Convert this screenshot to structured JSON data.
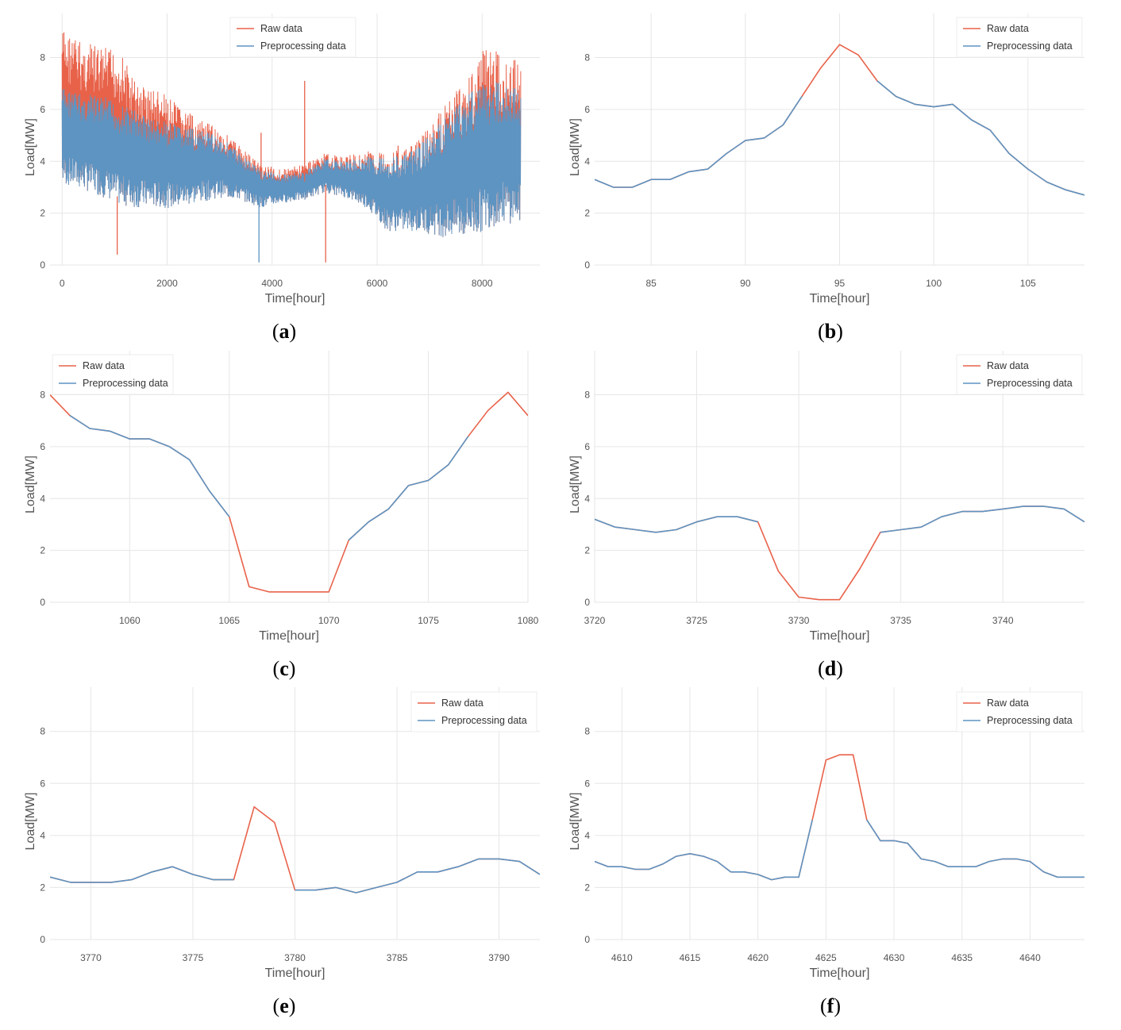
{
  "figure": {
    "colors": {
      "raw": "#e8624a",
      "preprocessing": "#5e94c2",
      "grid": "#e6e6e6",
      "text": "#555555"
    }
  },
  "chart_data": [
    {
      "id": "a",
      "type": "line",
      "caption": "a",
      "xlabel": "Time[hour]",
      "ylabel": "Load[MW]",
      "xlim": [
        -230,
        9100
      ],
      "ylim": [
        0,
        9.7
      ],
      "xticks": [
        0,
        2000,
        4000,
        6000,
        8000
      ],
      "yticks": [
        0,
        2,
        4,
        6,
        8
      ],
      "grid": true,
      "legend_position": "top-center",
      "dense_series": true,
      "note": "Hourly load for one year (~8760 points); envelope values approximate",
      "x": [
        0,
        400,
        800,
        1100,
        1400,
        1800,
        2200,
        2600,
        3000,
        3400,
        3800,
        4200,
        4600,
        5000,
        5400,
        5800,
        6200,
        6600,
        7000,
        7400,
        7800,
        8100,
        8400,
        8700
      ],
      "raw_upper": [
        9.2,
        8.6,
        8.4,
        8.3,
        7.1,
        6.8,
        6.2,
        5.6,
        5.3,
        4.6,
        3.9,
        3.7,
        3.9,
        4.3,
        4.2,
        4.4,
        4.4,
        4.5,
        5.3,
        6.6,
        7.6,
        8.7,
        8.0,
        8.0
      ],
      "prep_upper": [
        6.9,
        6.6,
        6.5,
        6.2,
        6.0,
        5.6,
        5.4,
        5.2,
        5.0,
        4.3,
        3.7,
        3.5,
        3.6,
        4.1,
        4.0,
        4.2,
        4.2,
        4.3,
        5.0,
        6.0,
        6.9,
        7.1,
        7.1,
        6.8
      ],
      "lower": [
        3.1,
        2.9,
        2.6,
        2.3,
        2.2,
        2.2,
        2.2,
        2.4,
        2.6,
        2.5,
        2.2,
        2.4,
        2.5,
        2.8,
        2.6,
        2.2,
        1.3,
        1.3,
        1.2,
        1.0,
        1.0,
        1.4,
        1.6,
        1.6
      ],
      "spikes": [
        {
          "x": 1050,
          "y": 0.4,
          "series": "Raw data"
        },
        {
          "x": 3750,
          "y": 0.1,
          "series": "Preprocessing data"
        },
        {
          "x": 3790,
          "y": 5.1,
          "series": "Raw data"
        },
        {
          "x": 4620,
          "y": 7.1,
          "series": "Raw data"
        },
        {
          "x": 5020,
          "y": 0.1,
          "series": "Raw data"
        },
        {
          "x": 6400,
          "y": 4.6,
          "series": "Raw data"
        }
      ],
      "series": [
        {
          "name": "Raw data",
          "color": "#e8624a"
        },
        {
          "name": "Preprocessing data",
          "color": "#5e94c2"
        }
      ]
    },
    {
      "id": "b",
      "type": "line",
      "caption": "b",
      "xlabel": "Time[hour]",
      "ylabel": "Load[MW]",
      "xlim": [
        82,
        108
      ],
      "ylim": [
        0,
        9.7
      ],
      "xticks": [
        85,
        90,
        95,
        100,
        105
      ],
      "yticks": [
        0,
        2,
        4,
        6,
        8
      ],
      "grid": true,
      "legend_position": "top-right",
      "series": [
        {
          "name": "Raw data",
          "color": "#e8624a",
          "x": [
            82,
            83,
            84,
            85,
            86,
            87,
            88,
            89,
            90,
            91,
            92,
            93,
            94,
            95,
            96,
            97,
            98,
            99,
            100,
            101,
            102,
            103,
            104,
            105,
            106,
            107,
            108
          ],
          "y": [
            3.3,
            3.0,
            3.0,
            3.3,
            3.3,
            3.6,
            3.7,
            4.3,
            4.8,
            4.9,
            5.4,
            6.5,
            7.6,
            8.5,
            8.1,
            7.1,
            6.5,
            6.2,
            6.1,
            6.2,
            5.6,
            5.2,
            4.3,
            3.7,
            3.2,
            2.9,
            2.7
          ]
        },
        {
          "name": "Preprocessing data",
          "color": "#5e94c2",
          "x": [
            82,
            83,
            84,
            85,
            86,
            87,
            88,
            89,
            90,
            91,
            92,
            93,
            null,
            97,
            98,
            99,
            100,
            101,
            102,
            103,
            104,
            105,
            106,
            107,
            108
          ],
          "y": [
            3.3,
            3.0,
            3.0,
            3.3,
            3.3,
            3.6,
            3.7,
            4.3,
            4.8,
            4.9,
            5.4,
            6.5,
            null,
            7.1,
            6.5,
            6.2,
            6.1,
            6.2,
            5.6,
            5.2,
            4.3,
            3.7,
            3.2,
            2.9,
            2.7
          ]
        }
      ]
    },
    {
      "id": "c",
      "type": "line",
      "caption": "c",
      "xlabel": "Time[hour]",
      "ylabel": "Load[MW]",
      "xlim": [
        1056,
        1080
      ],
      "ylim": [
        0,
        9.7
      ],
      "xticks": [
        1060,
        1065,
        1070,
        1075,
        1080
      ],
      "yticks": [
        0,
        2,
        4,
        6,
        8
      ],
      "grid": true,
      "legend_position": "top-left",
      "series": [
        {
          "name": "Raw data",
          "color": "#e8624a",
          "x": [
            1056,
            1057,
            1058,
            1059,
            1060,
            1061,
            1062,
            1063,
            1064,
            1065,
            1066,
            1067,
            1068,
            1069,
            1070,
            1071,
            1072,
            1073,
            1074,
            1075,
            1076,
            1077,
            1078,
            1079,
            1080
          ],
          "y": [
            8.0,
            7.2,
            6.7,
            6.6,
            6.3,
            6.3,
            6.0,
            5.5,
            4.3,
            3.3,
            0.6,
            0.4,
            0.4,
            0.4,
            0.4,
            2.4,
            3.1,
            3.6,
            4.5,
            4.7,
            5.3,
            6.4,
            7.4,
            8.1,
            7.2
          ]
        },
        {
          "name": "Preprocessing data",
          "color": "#5e94c2",
          "x": [
            1057,
            1058,
            1059,
            1060,
            1061,
            1062,
            1063,
            1064,
            1065,
            null,
            1071,
            1072,
            1073,
            1074,
            1075,
            1076,
            1077
          ],
          "y": [
            7.2,
            6.7,
            6.6,
            6.3,
            6.3,
            6.0,
            5.5,
            4.3,
            3.3,
            null,
            2.4,
            3.1,
            3.6,
            4.5,
            4.7,
            5.3,
            6.4
          ]
        }
      ]
    },
    {
      "id": "d",
      "type": "line",
      "caption": "d",
      "xlabel": "Time[hour]",
      "ylabel": "Load[MW]",
      "xlim": [
        3720,
        3744
      ],
      "ylim": [
        0,
        9.7
      ],
      "xticks": [
        3720,
        3725,
        3730,
        3735,
        3740
      ],
      "yticks": [
        0,
        2,
        4,
        6,
        8
      ],
      "grid": true,
      "legend_position": "top-right",
      "series": [
        {
          "name": "Raw data",
          "color": "#e8624a",
          "x": [
            3720,
            3721,
            3722,
            3723,
            3724,
            3725,
            3726,
            3727,
            3728,
            3729,
            3730,
            3731,
            3732,
            3733,
            3734,
            3735,
            3736,
            3737,
            3738,
            3739,
            3740,
            3741,
            3742,
            3743,
            3744
          ],
          "y": [
            3.2,
            2.9,
            2.8,
            2.7,
            2.8,
            3.1,
            3.3,
            3.3,
            3.1,
            1.2,
            0.2,
            0.1,
            0.1,
            1.3,
            2.7,
            2.8,
            2.9,
            3.3,
            3.5,
            3.5,
            3.6,
            3.7,
            3.7,
            3.6,
            3.1
          ]
        },
        {
          "name": "Preprocessing data",
          "color": "#5e94c2",
          "x": [
            3720,
            3721,
            3722,
            3723,
            3724,
            3725,
            3726,
            3727,
            3728,
            null,
            3734,
            3735,
            3736,
            3737,
            3738,
            3739,
            3740,
            3741,
            3742,
            3743,
            3744
          ],
          "y": [
            3.2,
            2.9,
            2.8,
            2.7,
            2.8,
            3.1,
            3.3,
            3.3,
            3.1,
            null,
            2.7,
            2.8,
            2.9,
            3.3,
            3.5,
            3.5,
            3.6,
            3.7,
            3.7,
            3.6,
            3.1
          ]
        }
      ]
    },
    {
      "id": "e",
      "type": "line",
      "caption": "e",
      "xlabel": "Time[hour]",
      "ylabel": "Load[MW]",
      "xlim": [
        3768,
        3792
      ],
      "ylim": [
        0,
        9.7
      ],
      "xticks": [
        3770,
        3775,
        3780,
        3785,
        3790
      ],
      "yticks": [
        0,
        2,
        4,
        6,
        8
      ],
      "grid": true,
      "legend_position": "top-right",
      "series": [
        {
          "name": "Raw data",
          "color": "#e8624a",
          "x": [
            3768,
            3769,
            3770,
            3771,
            3772,
            3773,
            3774,
            3775,
            3776,
            3777,
            3778,
            3779,
            3780,
            3781,
            3782,
            3783,
            3784,
            3785,
            3786,
            3787,
            3788,
            3789,
            3790,
            3791,
            3792
          ],
          "y": [
            2.4,
            2.2,
            2.2,
            2.2,
            2.3,
            2.6,
            2.8,
            2.5,
            2.3,
            2.3,
            5.1,
            4.5,
            1.9,
            1.9,
            2.0,
            1.8,
            2.0,
            2.2,
            2.6,
            2.6,
            2.8,
            3.1,
            3.1,
            3.0,
            2.5
          ]
        },
        {
          "name": "Preprocessing data",
          "color": "#5e94c2",
          "x": [
            3768,
            3769,
            3770,
            3771,
            3772,
            3773,
            3774,
            3775,
            3776,
            3777,
            null,
            3780,
            3781,
            3782,
            3783,
            3784,
            3785,
            3786,
            3787,
            3788,
            3789,
            3790,
            3791,
            3792
          ],
          "y": [
            2.4,
            2.2,
            2.2,
            2.2,
            2.3,
            2.6,
            2.8,
            2.5,
            2.3,
            2.3,
            null,
            1.9,
            1.9,
            2.0,
            1.8,
            2.0,
            2.2,
            2.6,
            2.6,
            2.8,
            3.1,
            3.1,
            3.0,
            2.5
          ]
        }
      ]
    },
    {
      "id": "f",
      "type": "line",
      "caption": "f",
      "xlabel": "Time[hour]",
      "ylabel": "Load[MW]",
      "xlim": [
        4608,
        4644
      ],
      "ylim": [
        0,
        9.7
      ],
      "xticks": [
        4610,
        4615,
        4620,
        4625,
        4630,
        4635,
        4640
      ],
      "yticks": [
        0,
        2,
        4,
        6,
        8
      ],
      "grid": true,
      "legend_position": "top-right",
      "series": [
        {
          "name": "Raw data",
          "color": "#e8624a",
          "x": [
            4608,
            4609,
            4610,
            4611,
            4612,
            4613,
            4614,
            4615,
            4616,
            4617,
            4618,
            4619,
            4620,
            4621,
            4622,
            4623,
            4624,
            4625,
            4626,
            4627,
            4628,
            4629,
            4630,
            4631,
            4632,
            4633,
            4634,
            4635,
            4636,
            4637,
            4638,
            4639,
            4640,
            4641,
            4642,
            4643,
            4644
          ],
          "y": [
            3.0,
            2.8,
            2.8,
            2.7,
            2.7,
            2.9,
            3.2,
            3.3,
            3.2,
            3.0,
            2.6,
            2.6,
            2.5,
            2.3,
            2.4,
            2.4,
            4.6,
            6.9,
            7.1,
            7.1,
            4.6,
            3.8,
            3.8,
            3.7,
            3.1,
            3.0,
            2.8,
            2.8,
            2.8,
            3.0,
            3.1,
            3.1,
            3.0,
            2.6,
            2.4,
            2.4,
            2.4
          ]
        },
        {
          "name": "Preprocessing data",
          "color": "#5e94c2",
          "x": [
            4608,
            4609,
            4610,
            4611,
            4612,
            4613,
            4614,
            4615,
            4616,
            4617,
            4618,
            4619,
            4620,
            4621,
            4622,
            4623,
            4624,
            null,
            4628,
            4629,
            4630,
            4631,
            4632,
            4633,
            4634,
            4635,
            4636,
            4637,
            4638,
            4639,
            4640,
            4641,
            4642,
            4643,
            4644
          ],
          "y": [
            3.0,
            2.8,
            2.8,
            2.7,
            2.7,
            2.9,
            3.2,
            3.3,
            3.2,
            3.0,
            2.6,
            2.6,
            2.5,
            2.3,
            2.4,
            2.4,
            4.6,
            null,
            4.6,
            3.8,
            3.8,
            3.7,
            3.1,
            3.0,
            2.8,
            2.8,
            2.8,
            3.0,
            3.1,
            3.1,
            3.0,
            2.6,
            2.4,
            2.4,
            2.4
          ]
        }
      ]
    }
  ]
}
